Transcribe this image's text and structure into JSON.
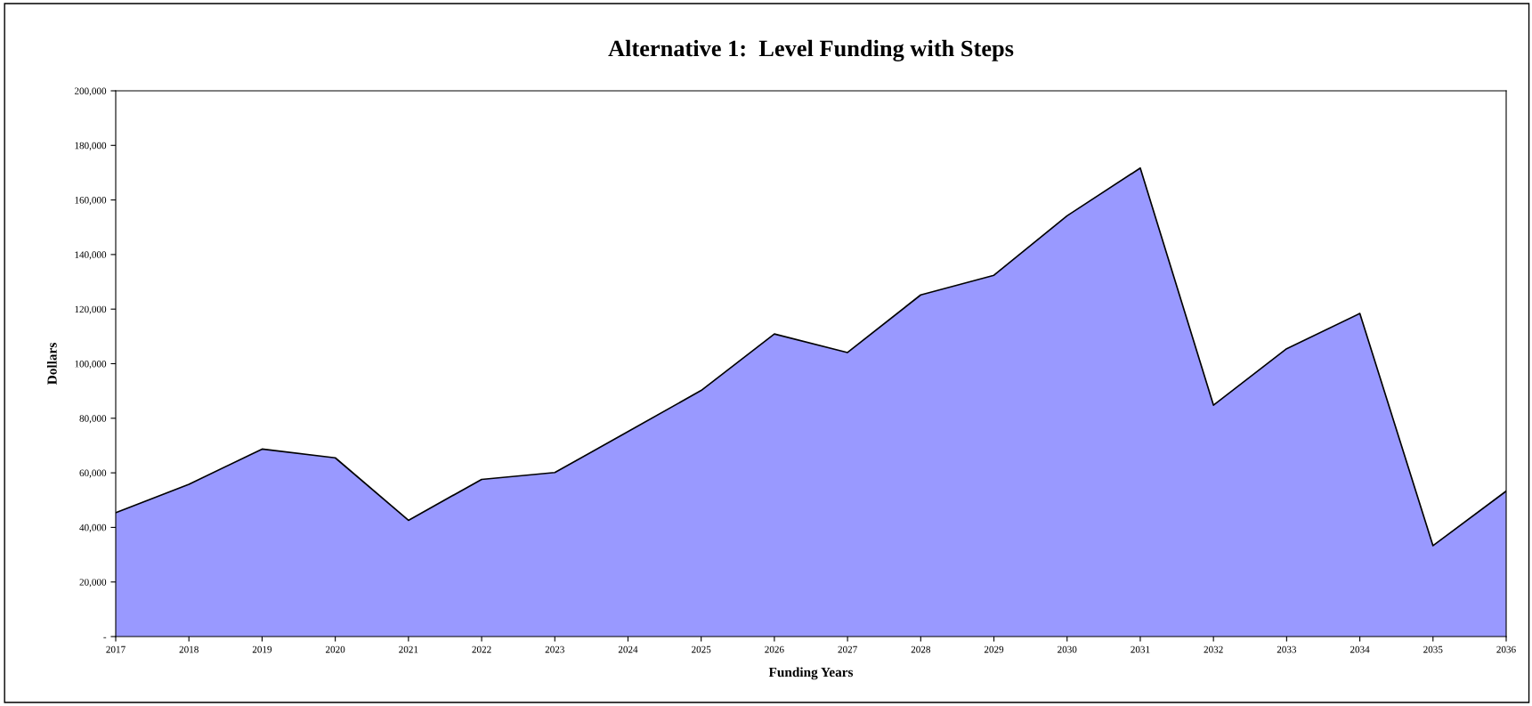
{
  "chart_data": {
    "type": "area",
    "title": "Alternative 1:  Level Funding with Steps",
    "xlabel": "Funding Years",
    "ylabel": "Dollars",
    "categories": [
      "2017",
      "2018",
      "2019",
      "2020",
      "2021",
      "2022",
      "2023",
      "2024",
      "2025",
      "2026",
      "2027",
      "2028",
      "2029",
      "2030",
      "2031",
      "2032",
      "2033",
      "2034",
      "2035",
      "2036"
    ],
    "series": [
      {
        "color": "#9999ff",
        "values": [
          45400,
          55800,
          68700,
          65500,
          42600,
          57600,
          60100,
          75100,
          90200,
          110900,
          104100,
          125200,
          132400,
          154200,
          171700,
          84800,
          105500,
          118400,
          33300,
          53300
        ]
      }
    ],
    "ylim": [
      0,
      200000
    ],
    "yticks": [
      {
        "value": 0,
        "label": "-"
      },
      {
        "value": 20000,
        "label": "20,000"
      },
      {
        "value": 40000,
        "label": "40,000"
      },
      {
        "value": 60000,
        "label": "60,000"
      },
      {
        "value": 80000,
        "label": "80,000"
      },
      {
        "value": 100000,
        "label": "100,000"
      },
      {
        "value": 120000,
        "label": "120,000"
      },
      {
        "value": 140000,
        "label": "140,000"
      },
      {
        "value": 160000,
        "label": "160,000"
      },
      {
        "value": 180000,
        "label": "180,000"
      },
      {
        "value": 200000,
        "label": "200,000"
      }
    ],
    "grid": false
  }
}
